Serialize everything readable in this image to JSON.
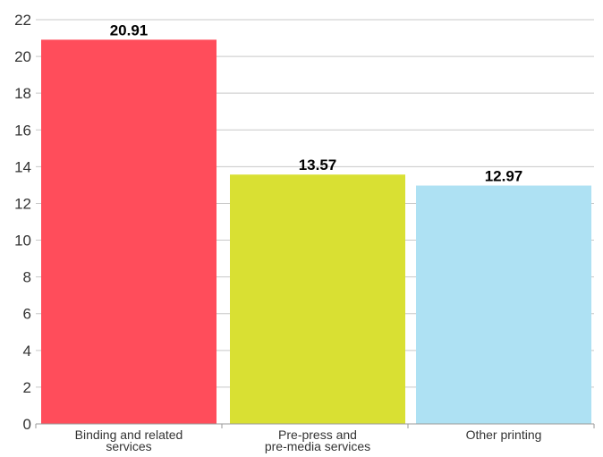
{
  "chart_data": {
    "type": "bar",
    "categories": [
      [
        "Binding and related",
        "services"
      ],
      [
        "Pre-press and",
        "pre-media services"
      ],
      [
        "Other printing"
      ]
    ],
    "values": [
      20.91,
      13.57,
      12.97
    ],
    "data_labels": [
      "20.91",
      "13.57",
      "12.97"
    ],
    "colors": [
      "#ff4d5b",
      "#d9e033",
      "#aee1f3"
    ],
    "yticks": [
      0,
      2,
      4,
      6,
      8,
      10,
      12,
      14,
      16,
      18,
      20,
      22
    ],
    "ylim": [
      0,
      22
    ],
    "grid": true,
    "legend": "none"
  }
}
